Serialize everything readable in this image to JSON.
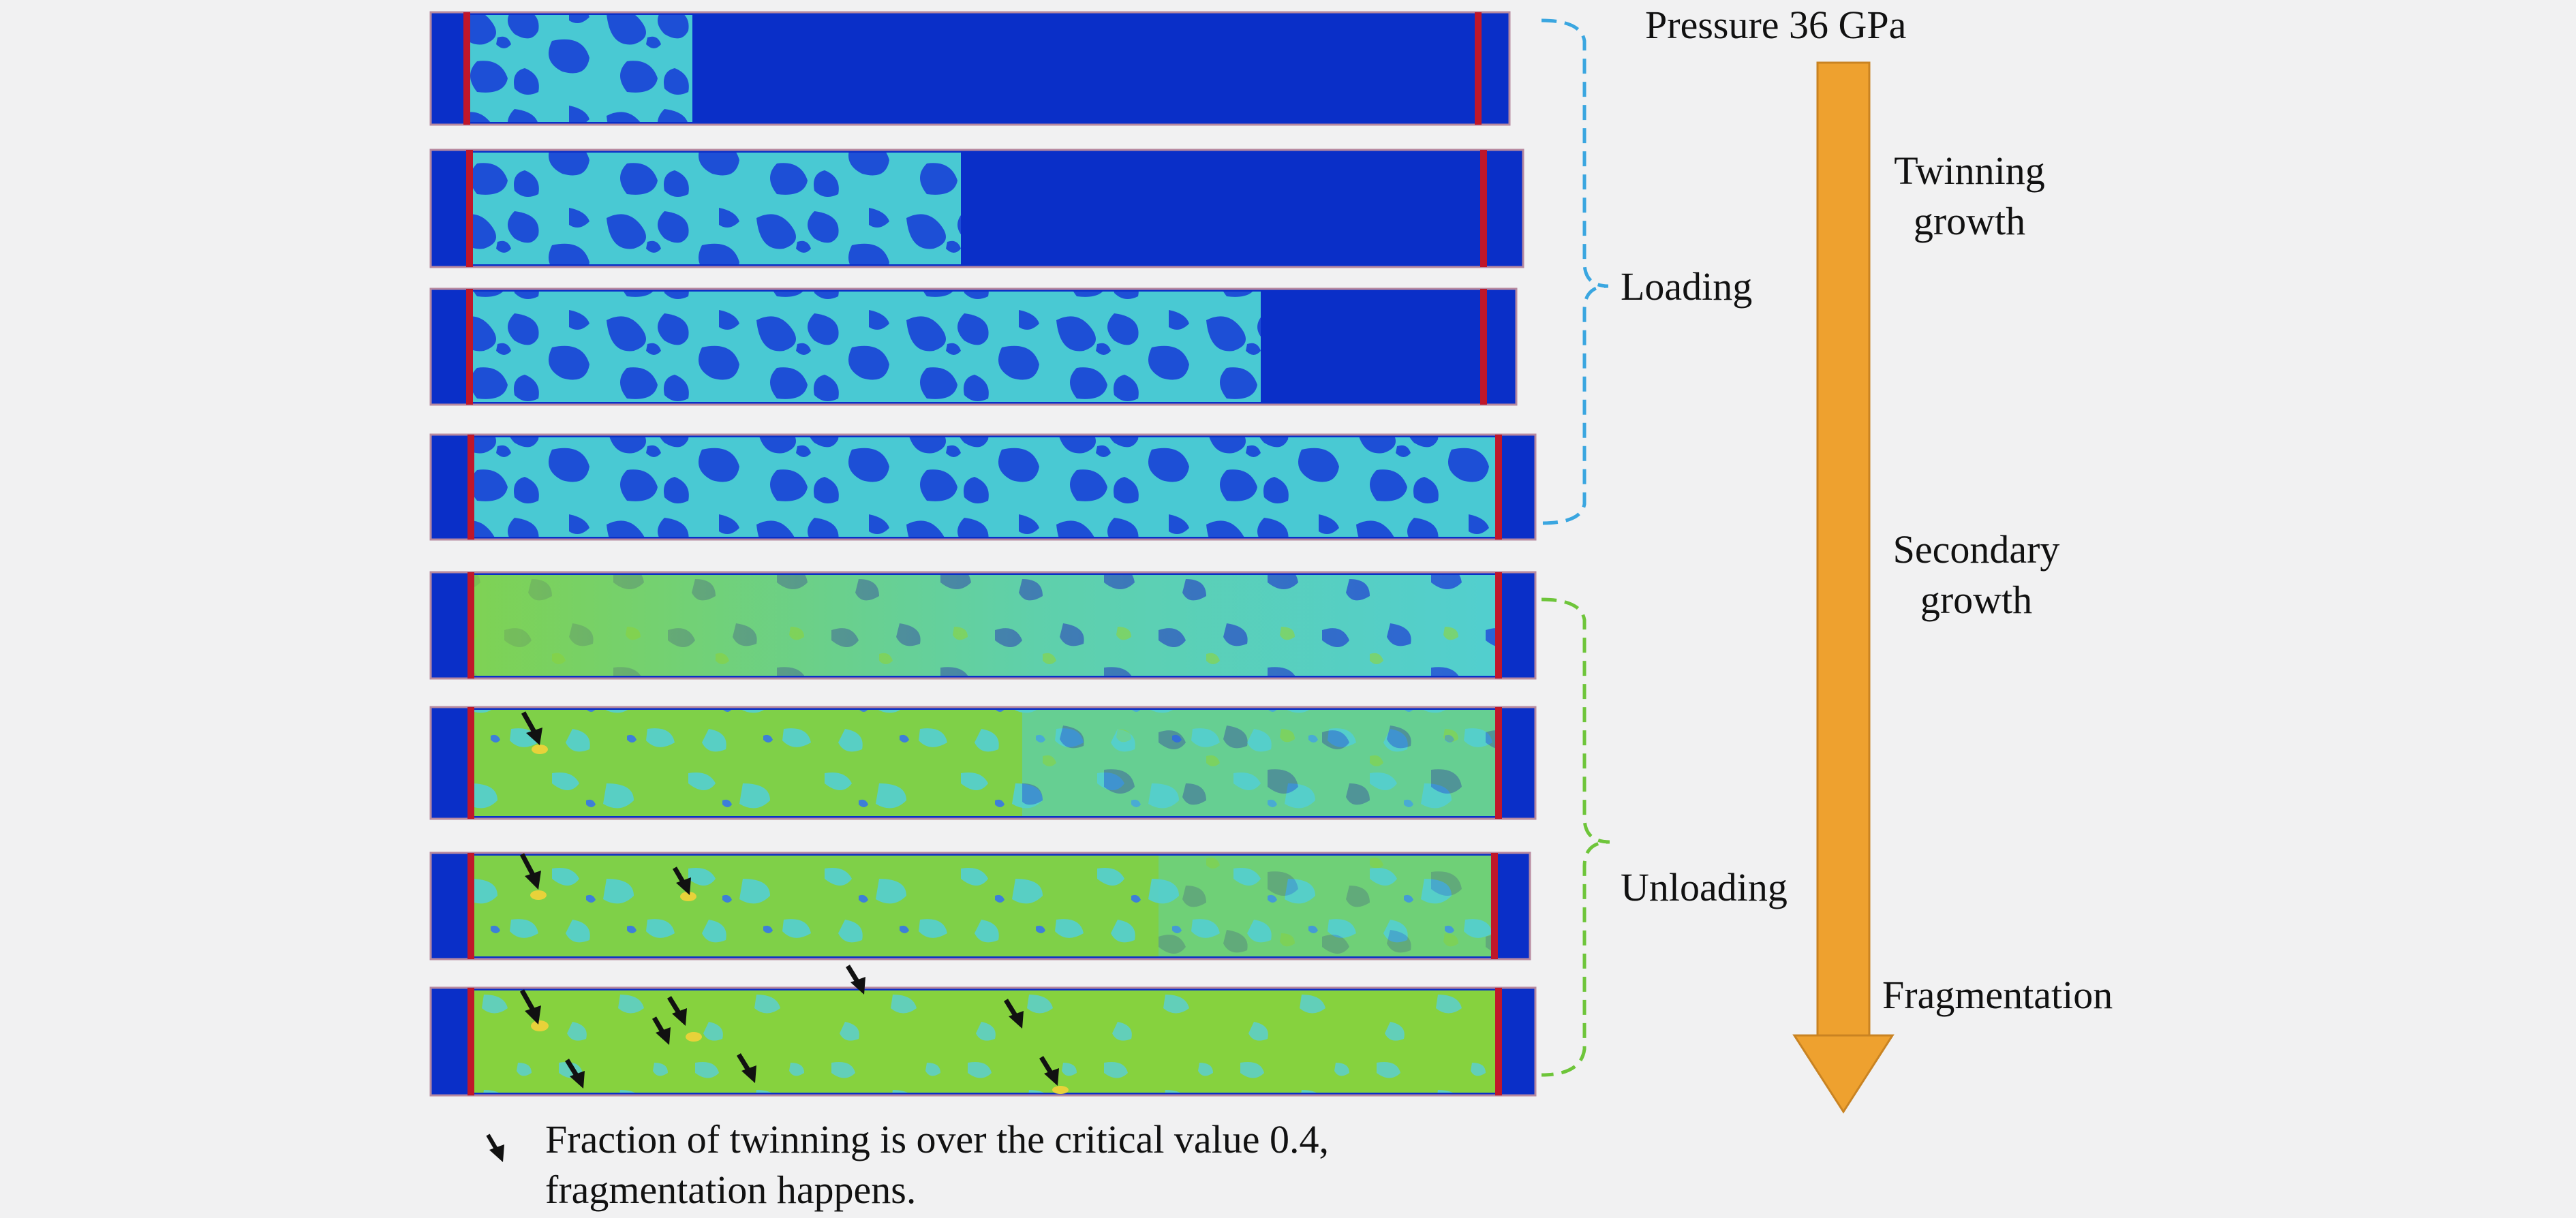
{
  "figure": {
    "pressure_label": "Pressure 36 GPa",
    "stages": {
      "loading": "Loading",
      "unloading": "Unloading"
    },
    "progression": {
      "twinning_growth": [
        "Twinning",
        "growth"
      ],
      "secondary_growth": [
        "Secondary",
        "growth"
      ],
      "fragmentation": "Fragmentation"
    },
    "legend": {
      "line1": "Fraction of twinning is over the critical value 0.4,",
      "line2": "fragmentation happens."
    },
    "panels": [
      {
        "phase": "loading",
        "twinned_fraction": 0.22
      },
      {
        "phase": "loading",
        "twinned_fraction": 0.46
      },
      {
        "phase": "loading",
        "twinned_fraction": 0.72
      },
      {
        "phase": "loading",
        "twinned_fraction": 1.0
      },
      {
        "phase": "unloading",
        "twinned_fraction": 1.0
      },
      {
        "phase": "unloading",
        "twinned_fraction": 1.0
      },
      {
        "phase": "unloading",
        "twinned_fraction": 1.0
      },
      {
        "phase": "unloading",
        "twinned_fraction": 1.0
      }
    ],
    "colors": {
      "untwinned": "#0a2fc8",
      "twinned_cyan": "#4ad0d6",
      "twinned_green": "#8fd63a",
      "boundary_red": "#c0172a",
      "loading_bracket": "#3aa6e0",
      "unloading_bracket": "#6ec53a",
      "arrow": "#eea12f"
    }
  }
}
